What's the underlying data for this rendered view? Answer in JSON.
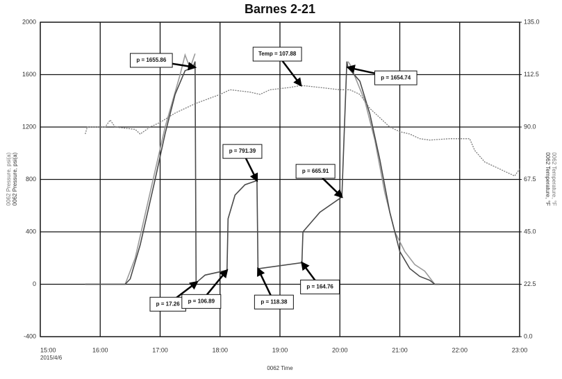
{
  "chart_data": {
    "type": "line",
    "title": "Barnes 2-21",
    "x_label": "0062 Time",
    "x_sublabel": "2015/4/6",
    "y_labels": [
      "0062 Pressure, psi(a)",
      "0062 Pressure, psi(a)"
    ],
    "y2_labels": [
      "0062 Temperature, °F",
      "0062 Temperature, °F"
    ],
    "xlim": [
      "15:00",
      "23:00"
    ],
    "xticks": [
      "15:00",
      "16:00",
      "17:00",
      "18:00",
      "19:00",
      "20:00",
      "21:00",
      "22:00",
      "23:00"
    ],
    "ylim": [
      -400,
      2000
    ],
    "yticks": [
      -400,
      0,
      400,
      800,
      1200,
      1600,
      2000
    ],
    "y2lim": [
      0,
      135
    ],
    "y2ticks": [
      {
        "value": 0,
        "label": "0.0"
      },
      22.5,
      {
        "value": 45,
        "label": "45.0"
      },
      67.5,
      {
        "value": 90,
        "label": "90.0"
      },
      112.5,
      {
        "value": 135,
        "label": "135.0"
      }
    ],
    "grid": true,
    "series": [
      {
        "color": "#9a9a9a",
        "dash": false,
        "x": [
          "15:45",
          "16:25",
          "16:35",
          "16:50",
          "17:05",
          "17:20",
          "17:25",
          "17:30",
          "17:35",
          "17:36",
          "20:08",
          "20:10",
          "20:25",
          "20:35",
          "20:45",
          "20:55",
          "21:05",
          "21:15",
          "21:25",
          "21:35",
          "21:40"
        ],
        "values": [
          0,
          0,
          200,
          700,
          1200,
          1600,
          1750,
          1650,
          1760,
          null,
          1700,
          1680,
          1400,
          1100,
          700,
          400,
          250,
          150,
          100,
          0,
          0
        ]
      },
      {
        "color": "#4a4a4a",
        "dash": false,
        "x": [
          "15:45",
          "16:25",
          "16:30",
          "16:40",
          "16:55",
          "17:05",
          "17:15",
          "17:25",
          "17:33",
          "17:35",
          "17:36",
          "17:37",
          "17:45",
          "18:07",
          "18:08",
          "18:15",
          "18:25",
          "18:37",
          "18:38",
          "19:22",
          "19:23",
          "19:40",
          "20:02",
          "20:07",
          "20:08",
          "20:20",
          "20:30",
          "20:40",
          "20:50",
          "21:00",
          "21:10",
          "21:20",
          "21:30",
          "21:35",
          "21:40"
        ],
        "values": [
          0,
          0,
          40,
          300,
          800,
          1150,
          1450,
          1630,
          1655.86,
          1700,
          0,
          17.26,
          70,
          106.89,
          500,
          680,
          760,
          791.39,
          118.38,
          164.76,
          400,
          550,
          665.91,
          1700,
          1654.74,
          1550,
          1300,
          950,
          550,
          250,
          120,
          60,
          30,
          0,
          0
        ]
      },
      {
        "color": "#7a7a7a",
        "dash": true,
        "axis": "y2",
        "x": [
          "15:45",
          "15:47",
          "16:05",
          "16:10",
          "16:15",
          "16:35",
          "16:40",
          "16:50",
          "17:00",
          "17:15",
          "17:35",
          "18:00",
          "18:10",
          "18:30",
          "18:40",
          "18:50",
          "19:10",
          "19:21",
          "19:40",
          "20:00",
          "20:10",
          "20:20",
          "20:30",
          "20:40",
          "20:50",
          "21:00",
          "21:10",
          "21:20",
          "21:30",
          "21:50",
          "22:10",
          "22:15",
          "22:25",
          "22:45",
          "22:55",
          "23:00"
        ],
        "values": [
          87,
          90,
          90,
          93,
          90,
          89,
          87,
          90,
          92,
          96,
          100,
          104,
          106,
          105,
          104,
          106,
          107,
          107.88,
          107,
          106,
          106,
          104,
          98,
          94,
          90,
          88,
          87,
          85,
          84.4,
          85,
          85,
          80,
          75,
          71,
          69,
          72
        ]
      }
    ],
    "annotations": [
      {
        "text": "p = 1655.86",
        "x": "17:35",
        "y": 1655.86
      },
      {
        "text": "Temp = 107.88",
        "x": "19:21",
        "y": 107.88,
        "axis": "y2"
      },
      {
        "text": "p = 1654.74",
        "x": "20:08",
        "y": 1654.74
      },
      {
        "text": "p = 791.39",
        "x": "18:37",
        "y": 791.39
      },
      {
        "text": "p = 665.91",
        "x": "20:02",
        "y": 665.91
      },
      {
        "text": "p = 17.26",
        "x": "17:37",
        "y": 17.26
      },
      {
        "text": "p = 106.89",
        "x": "18:07",
        "y": 106.89
      },
      {
        "text": "p = 118.38",
        "x": "18:38",
        "y": 118.38
      },
      {
        "text": "p = 164.76",
        "x": "19:22",
        "y": 164.76
      }
    ]
  }
}
